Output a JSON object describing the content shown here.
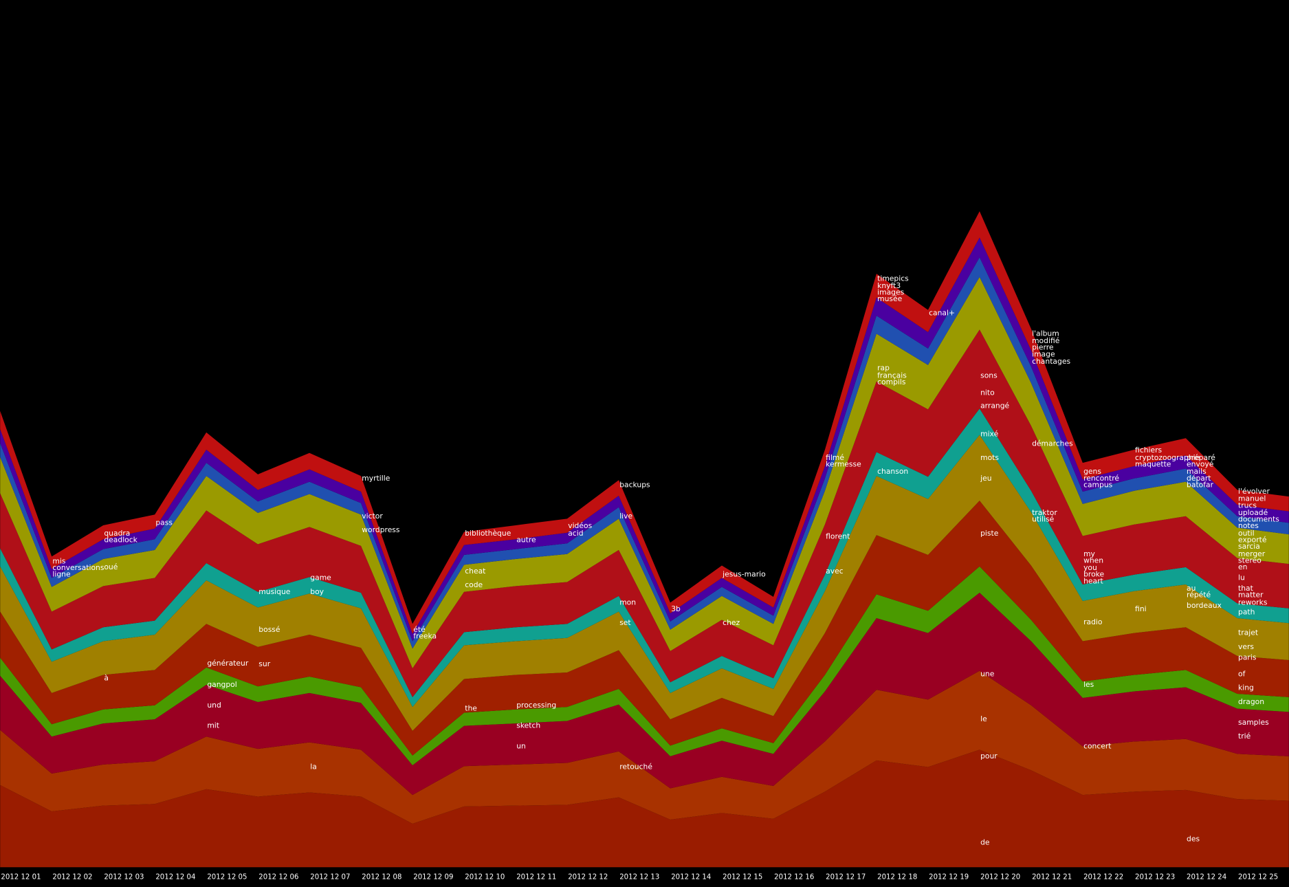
{
  "chart_data": {
    "type": "streamgraph",
    "categories": [
      "2012 12 01",
      "2012 12 02",
      "2012 12 03",
      "2012 12 04",
      "2012 12 05",
      "2012 12 06",
      "2012 12 07",
      "2012 12 08",
      "2012 12 09",
      "2012 12 10",
      "2012 12 11",
      "2012 12 12",
      "2012 12 13",
      "2012 12 14",
      "2012 12 15",
      "2012 12 16",
      "2012 12 17",
      "2012 12 18",
      "2012 12 19",
      "2012 12 20",
      "2012 12 21",
      "2012 12 22",
      "2012 12 23",
      "2012 12 24",
      "2012 12 25",
      null
    ],
    "series": [
      {
        "color": "#9a1c00",
        "values": [
          100,
          68,
          75,
          77,
          95,
          86,
          91,
          86,
          53,
          74,
          75,
          76,
          85,
          58,
          66,
          59,
          92,
          130,
          122,
          143,
          118,
          88,
          92,
          94,
          83,
          81
        ]
      },
      {
        "color": "#a83200",
        "values": [
          67,
          46,
          50,
          52,
          64,
          58,
          61,
          57,
          35,
          49,
          50,
          51,
          56,
          38,
          44,
          40,
          61,
          86,
          82,
          96,
          79,
          59,
          61,
          62,
          55,
          54
        ]
      },
      {
        "color": "#990022",
        "values": [
          66,
          45,
          50,
          51,
          63,
          57,
          60,
          57,
          36,
          49,
          50,
          51,
          57,
          39,
          44,
          39,
          61,
          87,
          81,
          95,
          78,
          59,
          61,
          63,
          55,
          54
        ]
      },
      {
        "color": "#4a9a00",
        "values": [
          22,
          15,
          17,
          17,
          21,
          19,
          20,
          19,
          12,
          16,
          17,
          17,
          19,
          13,
          15,
          13,
          20,
          29,
          27,
          32,
          26,
          20,
          20,
          21,
          18,
          18
        ]
      },
      {
        "color": "#a02000",
        "values": [
          56,
          38,
          42,
          43,
          53,
          48,
          51,
          48,
          30,
          41,
          42,
          42,
          47,
          32,
          37,
          33,
          51,
          72,
          68,
          80,
          66,
          49,
          51,
          52,
          46,
          45
        ]
      },
      {
        "color": "#a08000",
        "values": [
          55,
          38,
          41,
          43,
          53,
          48,
          50,
          48,
          29,
          41,
          41,
          42,
          47,
          32,
          36,
          33,
          51,
          72,
          68,
          80,
          65,
          49,
          51,
          52,
          46,
          45
        ]
      },
      {
        "color": "#10a090",
        "values": [
          22,
          15,
          17,
          17,
          21,
          19,
          20,
          19,
          12,
          16,
          17,
          17,
          19,
          13,
          15,
          13,
          20,
          29,
          27,
          32,
          26,
          20,
          20,
          21,
          18,
          18
        ]
      },
      {
        "color": "#b01018",
        "values": [
          67,
          46,
          50,
          52,
          64,
          58,
          61,
          57,
          35,
          49,
          50,
          51,
          56,
          38,
          44,
          40,
          61,
          86,
          82,
          96,
          79,
          59,
          61,
          62,
          55,
          54
        ]
      },
      {
        "color": "#9a9a00",
        "values": [
          44,
          30,
          33,
          34,
          42,
          38,
          40,
          38,
          24,
          33,
          33,
          34,
          38,
          26,
          29,
          26,
          41,
          58,
          54,
          64,
          52,
          39,
          41,
          42,
          37,
          36
        ]
      },
      {
        "color": "#2050b0",
        "values": [
          17,
          11,
          12,
          13,
          16,
          14,
          15,
          14,
          9,
          12,
          12,
          13,
          14,
          10,
          11,
          10,
          15,
          22,
          20,
          24,
          20,
          15,
          15,
          16,
          14,
          14
        ]
      },
      {
        "color": "#4a00a0",
        "values": [
          17,
          11,
          12,
          13,
          16,
          14,
          15,
          14,
          9,
          12,
          12,
          13,
          14,
          10,
          11,
          10,
          15,
          22,
          20,
          24,
          20,
          15,
          15,
          16,
          14,
          14
        ]
      },
      {
        "color": "#c01010",
        "values": [
          22,
          15,
          17,
          17,
          21,
          19,
          20,
          19,
          12,
          16,
          17,
          17,
          19,
          13,
          15,
          13,
          20,
          29,
          27,
          32,
          26,
          20,
          20,
          21,
          18,
          18
        ]
      }
    ],
    "labels": [
      [],
      [
        "mis",
        "conversations",
        "ligne"
      ],
      [
        "quadra",
        "deadlock",
        "oué",
        "à"
      ],
      [
        "pass"
      ],
      [
        "générateur",
        "gangpol",
        "und",
        "mit"
      ],
      [
        "musique",
        "bossé",
        "sur"
      ],
      [
        "game",
        "boy",
        "la"
      ],
      [
        "myrtille",
        "victor",
        "wordpress"
      ],
      [
        "été",
        "freeka"
      ],
      [
        "bibliothèque",
        "cheat",
        "code",
        "the"
      ],
      [
        "autre",
        "processing",
        "sketch",
        "un"
      ],
      [
        "vidéos",
        "acid"
      ],
      [
        "backups",
        "live",
        "mon",
        "set",
        "retouché"
      ],
      [
        "3b"
      ],
      [
        "jesus-mario",
        "chez"
      ],
      [],
      [
        "filmé",
        "kermesse",
        "florent",
        "avec"
      ],
      [
        "timepics",
        "knyft3",
        "images",
        "musée",
        "rap",
        "français",
        "compils",
        "chanson"
      ],
      [
        "canal+"
      ],
      [
        "sons",
        "nito",
        "arrangé",
        "mixé",
        "mots",
        "jeu",
        "piste",
        "une",
        "le",
        "pour",
        "de"
      ],
      [
        "l'album",
        "modifié",
        "pierre",
        "image",
        "chantages",
        "démarches",
        "traktor",
        "utilisé"
      ],
      [
        "gens",
        "rencontré",
        "campus",
        "my",
        "when",
        "you",
        "broke",
        "heart",
        "radio",
        "les",
        "concert"
      ],
      [
        "fichiers",
        "cryptozoographie",
        "maquette",
        "fini"
      ],
      [
        "préparé",
        "envoyé",
        "mails",
        "départ",
        "batofar",
        "au",
        "répété",
        "bordeaux",
        "des"
      ],
      [
        "l'évolver",
        "manuel",
        "trucs",
        "uploadé",
        "documents",
        "notes",
        "outil",
        "exporté",
        "sarcia",
        "merger",
        "stereo",
        "en",
        "lu",
        "that",
        "matter",
        "reworks",
        "path",
        "trajet",
        "vers",
        "paris",
        "of",
        "king",
        "dragon",
        "samples",
        "trié"
      ],
      []
    ]
  }
}
